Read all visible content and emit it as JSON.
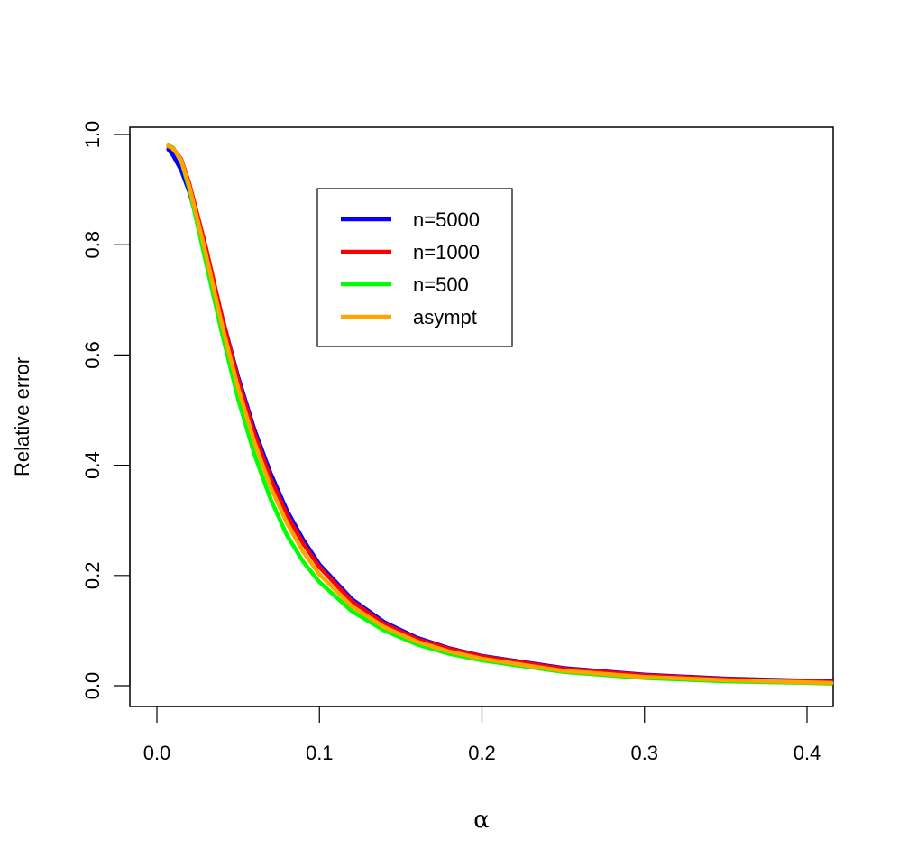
{
  "chart_data": {
    "type": "line",
    "title": "",
    "xlabel": "α",
    "ylabel": "Relative error",
    "xlim": [
      0.0,
      0.415
    ],
    "ylim": [
      -0.04,
      1.01
    ],
    "x_ticks": [
      "0.0",
      "0.1",
      "0.2",
      "0.3",
      "0.4"
    ],
    "y_ticks": [
      "0.0",
      "0.2",
      "0.4",
      "0.6",
      "0.8",
      "1.0"
    ],
    "grid": false,
    "legend_position": "top-center",
    "series": [
      {
        "name": "n=5000",
        "color": "#0000ff",
        "x": [
          0.007,
          0.01,
          0.015,
          0.02,
          0.03,
          0.04,
          0.05,
          0.06,
          0.07,
          0.08,
          0.09,
          0.1,
          0.12,
          0.14,
          0.16,
          0.18,
          0.2,
          0.25,
          0.3,
          0.35,
          0.4,
          0.415
        ],
        "y": [
          0.973,
          0.962,
          0.935,
          0.895,
          0.79,
          0.67,
          0.56,
          0.465,
          0.385,
          0.318,
          0.265,
          0.22,
          0.157,
          0.115,
          0.087,
          0.068,
          0.054,
          0.032,
          0.02,
          0.013,
          0.009,
          0.008
        ]
      },
      {
        "name": "n=1000",
        "color": "#ff0000",
        "x": [
          0.007,
          0.01,
          0.015,
          0.02,
          0.03,
          0.04,
          0.05,
          0.06,
          0.07,
          0.08,
          0.09,
          0.1,
          0.12,
          0.14,
          0.16,
          0.18,
          0.2,
          0.25,
          0.3,
          0.35,
          0.4,
          0.415
        ],
        "y": [
          0.978,
          0.975,
          0.955,
          0.91,
          0.797,
          0.67,
          0.555,
          0.458,
          0.376,
          0.31,
          0.258,
          0.215,
          0.153,
          0.112,
          0.085,
          0.067,
          0.053,
          0.031,
          0.019,
          0.012,
          0.008,
          0.007
        ]
      },
      {
        "name": "n=500",
        "color": "#00ff00",
        "x": [
          0.007,
          0.01,
          0.015,
          0.02,
          0.03,
          0.04,
          0.05,
          0.06,
          0.07,
          0.08,
          0.09,
          0.1,
          0.12,
          0.14,
          0.16,
          0.18,
          0.2,
          0.25,
          0.3,
          0.35,
          0.4,
          0.415
        ],
        "y": [
          0.98,
          0.976,
          0.952,
          0.9,
          0.77,
          0.64,
          0.52,
          0.42,
          0.338,
          0.273,
          0.225,
          0.188,
          0.135,
          0.1,
          0.075,
          0.058,
          0.046,
          0.025,
          0.014,
          0.008,
          0.005,
          0.004
        ]
      },
      {
        "name": "asympt",
        "color": "#ffa500",
        "x": [
          0.007,
          0.01,
          0.015,
          0.02,
          0.03,
          0.04,
          0.05,
          0.06,
          0.07,
          0.08,
          0.09,
          0.1,
          0.12,
          0.14,
          0.16,
          0.18,
          0.2,
          0.25,
          0.3,
          0.35,
          0.4,
          0.415
        ],
        "y": [
          0.979,
          0.975,
          0.953,
          0.905,
          0.785,
          0.655,
          0.54,
          0.442,
          0.36,
          0.295,
          0.243,
          0.202,
          0.144,
          0.106,
          0.08,
          0.062,
          0.049,
          0.027,
          0.016,
          0.01,
          0.006,
          0.005
        ]
      }
    ]
  }
}
